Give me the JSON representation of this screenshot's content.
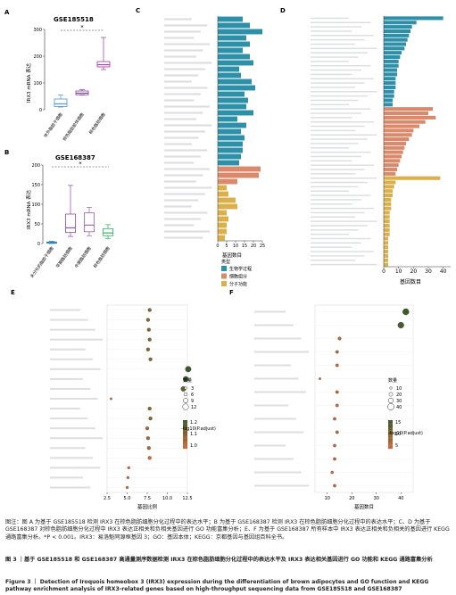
{
  "panels": {
    "A": {
      "letter": "A",
      "title": "GSE185518",
      "ylabel": "IRX3 mRNA 表达",
      "yticks": [
        "0",
        "100",
        "200",
        "300"
      ],
      "sig": "*",
      "groups": [
        "体外脂肪干细胞",
        "棕色脂肪前体细胞",
        "棕色脂肪细胞"
      ]
    },
    "B": {
      "letter": "B",
      "title": "GSE168387",
      "ylabel": "IRX3 mRNA 表达",
      "yticks": [
        "0",
        "50",
        "100",
        "150",
        "200"
      ],
      "sig": "*",
      "groups": [
        "未分化的脂肪干细胞",
        "早期脂肪细胞",
        "中期脂肪细胞",
        "棕色脂肪细胞"
      ]
    },
    "C": {
      "letter": "C",
      "xlabel": "基因数目",
      "xticks": [
        "0",
        "5",
        "10",
        "15",
        "20",
        "25"
      ],
      "legend_title": "类型",
      "legend_items": [
        "生物学过程",
        "细胞组分",
        "分子功能"
      ]
    },
    "D": {
      "letter": "D",
      "xlabel": "基因数目",
      "xticks": [
        "0",
        "10",
        "20",
        "30",
        "40"
      ]
    },
    "E": {
      "letter": "E",
      "xlabel": "基因比例",
      "xticks": [
        "2.5",
        "5.0",
        "7.5",
        "10.0",
        "12.5"
      ],
      "legend_count_title": "数量",
      "legend_counts": [
        "3",
        "6",
        "9",
        "12"
      ],
      "legend_p_title": "-log10(P.adjust)",
      "legend_p_ticks": [
        "1.2",
        "1.1",
        "1.0"
      ]
    },
    "F": {
      "letter": "F",
      "xlabel": "基因数目",
      "xticks": [
        "10",
        "20",
        "30",
        "40"
      ],
      "legend_count_title": "数量",
      "legend_counts": [
        "10",
        "20",
        "30",
        "40"
      ],
      "legend_p_title": "-log10(P.adjust)",
      "legend_p_ticks": [
        "15",
        "10",
        "5"
      ]
    }
  },
  "caption": {
    "zh": "图注：图 A 为基于 GSE185518 检测 IRX3 在棕色脂肪细胞分化过程中的表达水平；B 为基于 GSE168387 检测 IRX3 在棕色脂肪细胞分化过程中的表达水平；C、D 为基于 GSE168387 对棕色脂肪细胞分化过程中 IRX3 表达正相关和负相关基因进行 GO 功能富集分析；E、F 为基于 GSE168387 所有样本中 IRX3 表达正相关和负相关的基因进行 KEGG 通路富集分析。*P < 0.001。IRX3：易洛魁同源框基因 3；GO：基因本体；KEGG：京都基因与基因组百科全书。",
    "zh_title": "图 3 ｜基于 GSE185518 和 GSE168387 高通量测序数据检测 IRX3 在棕色脂肪细胞分化过程中的表达水平及 IRX3 表达相关基因进行 GO 功能和 KEGG 通路富集分析",
    "en_title": "Figure 3 ｜ Detection of Iroquois homeobox 3 (IRX3) expression during the differentiation of brown adipocytes and GO function and KEGG pathway enrichment analysis of IRX3-related genes based on high-throughput sequencing data from GSE185518 and GSE168387"
  },
  "chart_data": [
    {
      "type": "box",
      "panel": "A",
      "title": "GSE185518",
      "ylabel": "IRX3 mRNA 表达",
      "ylim": [
        0,
        300
      ],
      "categories": [
        "体外脂肪干细胞",
        "棕色脂肪前体细胞",
        "棕色脂肪细胞"
      ],
      "medians": [
        22,
        62,
        168
      ],
      "q1": [
        12,
        56,
        160
      ],
      "q3": [
        40,
        70,
        180
      ],
      "whisker_low": [
        10,
        55,
        150
      ],
      "whisker_high": [
        55,
        75,
        270
      ],
      "colors": [
        "#4d8fd6",
        "#7d3c98",
        "#a535a0"
      ]
    },
    {
      "type": "box",
      "panel": "B",
      "title": "GSE168387",
      "ylabel": "IRX3 mRNA 表达",
      "ylim": [
        0,
        200
      ],
      "categories": [
        "未分化的脂肪干细胞",
        "早期脂肪细胞",
        "中期脂肪细胞",
        "棕色脂肪细胞"
      ],
      "medians": [
        2,
        40,
        47,
        27
      ],
      "q1": [
        1,
        28,
        30,
        20
      ],
      "q3": [
        4,
        75,
        78,
        38
      ],
      "whisker_low": [
        0,
        18,
        20,
        12
      ],
      "whisker_high": [
        6,
        148,
        92,
        48
      ],
      "colors": [
        "#2c7fb8",
        "#8e44ad",
        "#9b59b6",
        "#27ae60"
      ]
    },
    {
      "type": "bar",
      "panel": "C",
      "orientation": "horizontal",
      "xlabel": "基因数目",
      "xlim": [
        0,
        25
      ],
      "series": [
        {
          "name": "生物学过程",
          "color": "#2e8fa8",
          "values": [
            14,
            18,
            25,
            16,
            18,
            14,
            18,
            20,
            12,
            13,
            19,
            21,
            15,
            17,
            16,
            20,
            11,
            16,
            13,
            15,
            14,
            14,
            13,
            12
          ]
        },
        {
          "name": "细胞组分",
          "color": "#d98a6b",
          "values": [
            24,
            23,
            11
          ]
        },
        {
          "name": "分子功能",
          "color": "#d9b04a",
          "values": [
            5,
            6,
            10,
            11,
            5,
            6,
            5,
            5,
            4
          ]
        }
      ]
    },
    {
      "type": "bar",
      "panel": "D",
      "orientation": "horizontal",
      "xlabel": "基因数目",
      "xlim": [
        0,
        45
      ],
      "series": [
        {
          "name": "生物学过程",
          "color": "#2e8fa8",
          "values": [
            40,
            22,
            19,
            18,
            17,
            16,
            15,
            14,
            12,
            11,
            10,
            10,
            9,
            9,
            8,
            8,
            8,
            7,
            7,
            6,
            6
          ]
        },
        {
          "name": "细胞组分",
          "color": "#d98a6b",
          "values": [
            33,
            30,
            35,
            28,
            24,
            20,
            19,
            17,
            15,
            14,
            13,
            12,
            11,
            10,
            9,
            8
          ]
        },
        {
          "name": "分子功能",
          "color": "#d9b04a",
          "values": [
            38,
            8,
            7,
            6,
            6,
            5,
            5,
            5,
            4,
            4,
            4,
            4,
            4,
            4,
            3,
            3,
            3,
            3,
            3,
            3,
            3
          ]
        }
      ]
    },
    {
      "type": "scatter",
      "panel": "E",
      "xlabel": "基因比例",
      "xlim": [
        2.5,
        12.5
      ],
      "points": [
        {
          "x": 7.8,
          "count": 6,
          "p": 1.1
        },
        {
          "x": 7.6,
          "count": 6,
          "p": 1.1
        },
        {
          "x": 7.7,
          "count": 6,
          "p": 1.1
        },
        {
          "x": 7.8,
          "count": 6,
          "p": 1.1
        },
        {
          "x": 7.6,
          "count": 6,
          "p": 1.1
        },
        {
          "x": 7.9,
          "count": 6,
          "p": 1.1
        },
        {
          "x": 12.6,
          "count": 12,
          "p": 1.2
        },
        {
          "x": 12.3,
          "count": 11,
          "p": 1.2
        },
        {
          "x": 12.0,
          "count": 10,
          "p": 1.15
        },
        {
          "x": 3.0,
          "count": 3,
          "p": 1.0
        },
        {
          "x": 7.8,
          "count": 6,
          "p": 1.1
        },
        {
          "x": 7.9,
          "count": 6,
          "p": 1.1
        },
        {
          "x": 7.5,
          "count": 6,
          "p": 1.05
        },
        {
          "x": 7.6,
          "count": 6,
          "p": 1.05
        },
        {
          "x": 7.7,
          "count": 6,
          "p": 1.05
        },
        {
          "x": 7.8,
          "count": 6,
          "p": 1.0
        },
        {
          "x": 5.2,
          "count": 4,
          "p": 1.0
        },
        {
          "x": 5.1,
          "count": 4,
          "p": 1.0
        },
        {
          "x": 5.0,
          "count": 4,
          "p": 1.0
        }
      ]
    },
    {
      "type": "scatter",
      "panel": "F",
      "xlabel": "基因数目",
      "xlim": [
        5,
        45
      ],
      "points": [
        {
          "x": 42,
          "count": 42,
          "p": 15
        },
        {
          "x": 40,
          "count": 40,
          "p": 14
        },
        {
          "x": 15,
          "count": 15,
          "p": 6
        },
        {
          "x": 14,
          "count": 14,
          "p": 6
        },
        {
          "x": 14,
          "count": 14,
          "p": 5
        },
        {
          "x": 7,
          "count": 7,
          "p": 4
        },
        {
          "x": 14,
          "count": 14,
          "p": 6
        },
        {
          "x": 14,
          "count": 14,
          "p": 5
        },
        {
          "x": 13,
          "count": 13,
          "p": 5
        },
        {
          "x": 14,
          "count": 14,
          "p": 6
        },
        {
          "x": 13,
          "count": 13,
          "p": 5
        },
        {
          "x": 13,
          "count": 13,
          "p": 5
        },
        {
          "x": 12,
          "count": 12,
          "p": 4
        },
        {
          "x": 13,
          "count": 13,
          "p": 5
        }
      ]
    }
  ]
}
